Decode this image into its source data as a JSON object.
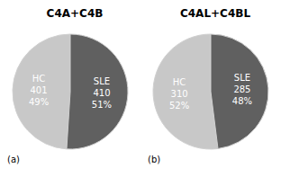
{
  "chart_data": [
    {
      "type": "pie",
      "title": "C4A+C4B",
      "categories": [
        "HC",
        "SLE"
      ],
      "values": [
        49,
        51
      ],
      "value_labels": [
        "49%",
        "51%"
      ],
      "counts": [
        401,
        410
      ],
      "colors": [
        "#c8c8c8",
        "#606060"
      ],
      "annotations": [
        "(a)"
      ]
    },
    {
      "type": "pie",
      "title": "C4AL+C4BL",
      "categories": [
        "HC",
        "SLE"
      ],
      "values": [
        52,
        48
      ],
      "value_labels": [
        "52%",
        "48%"
      ],
      "counts": [
        310,
        285
      ],
      "colors": [
        "#c8c8c8",
        "#606060"
      ],
      "annotations": [
        "(b)"
      ]
    }
  ]
}
